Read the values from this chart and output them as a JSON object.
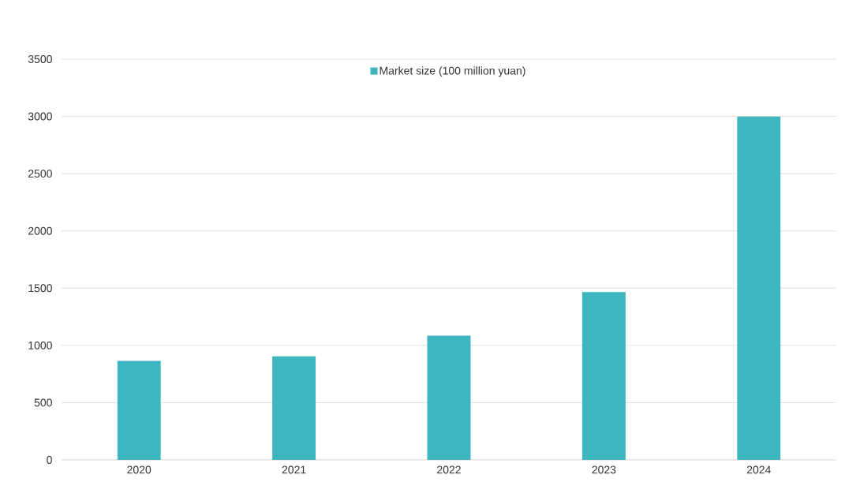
{
  "chart_data": {
    "type": "bar",
    "categories": [
      "2020",
      "2021",
      "2022",
      "2023",
      "2024"
    ],
    "series": [
      {
        "name": "Market size (100 million yuan)",
        "color": "#3db6bf",
        "values": [
          865,
          905,
          1085,
          1465,
          3000
        ]
      }
    ],
    "ylim": [
      0,
      3500
    ],
    "yticks": [
      0,
      500,
      1000,
      1500,
      2000,
      2500,
      3000,
      3500
    ],
    "grid": "y",
    "legend": "top"
  }
}
